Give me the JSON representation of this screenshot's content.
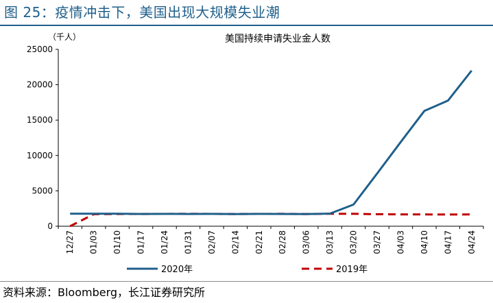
{
  "figure": {
    "title": "图 25：疫情冲击下，美国出现大规模失业潮",
    "source": "资料来源：Bloomberg，长江证券研究所"
  },
  "colors": {
    "accent": "#1f5f8b",
    "series_2020": "#1f5f8b",
    "series_2019": "#c00000"
  },
  "chart_data": {
    "type": "line",
    "title": "美国持续申请失业金人数",
    "ylabel": "（千人）",
    "xlabel": "",
    "ylim": [
      0,
      25000
    ],
    "yticks": [
      0,
      5000,
      10000,
      15000,
      20000,
      25000
    ],
    "grid": false,
    "legend_position": "bottom",
    "categories": [
      "12/27",
      "01/03",
      "01/10",
      "01/17",
      "01/24",
      "01/31",
      "02/07",
      "02/14",
      "02/21",
      "02/28",
      "03/06",
      "03/13",
      "03/20",
      "03/27",
      "04/03",
      "04/10",
      "04/17",
      "04/24"
    ],
    "series": [
      {
        "name": "2020年",
        "style": "solid",
        "values": [
          1760,
          1770,
          1760,
          1730,
          1740,
          1730,
          1740,
          1720,
          1740,
          1730,
          1720,
          1780,
          3060,
          7450,
          11900,
          16300,
          17750,
          22000
        ]
      },
      {
        "name": "2019年",
        "style": "dashed",
        "values": [
          0,
          1700,
          1720,
          1730,
          1740,
          1760,
          1740,
          1720,
          1740,
          1750,
          1720,
          1760,
          1750,
          1700,
          1680,
          1670,
          1660,
          1670
        ]
      }
    ]
  }
}
